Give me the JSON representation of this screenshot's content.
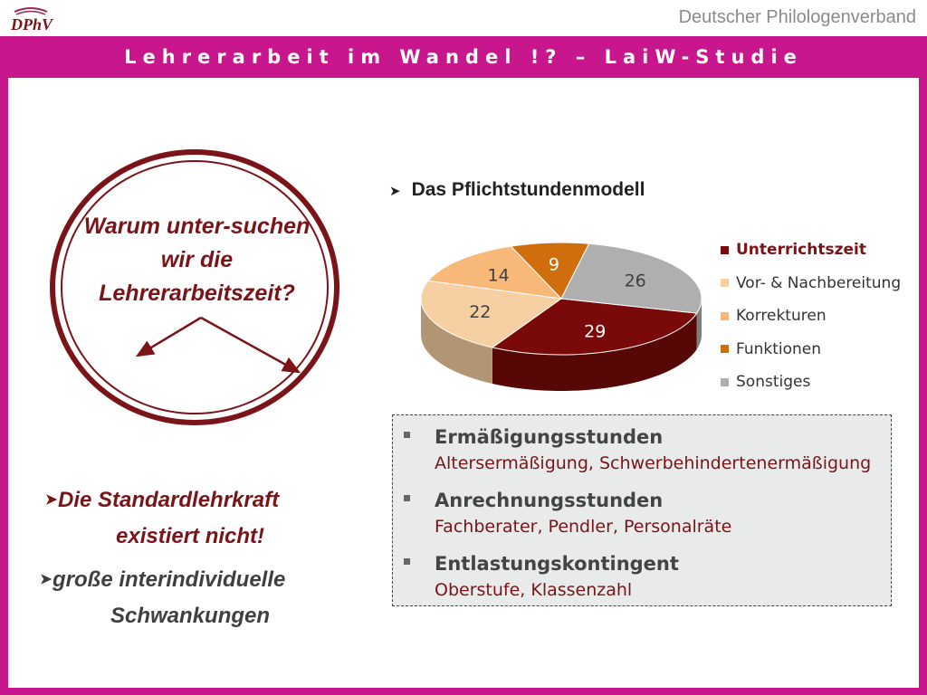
{
  "header": {
    "logo_text": "DPhV",
    "organization": "Deutscher Philologenverband",
    "title": "Lehrerarbeit im Wandel !? – LaiW-Studie"
  },
  "left": {
    "question": "Warum unter-suchen wir die Lehrerarbeitszeit?",
    "bullet1_line1": "Die Standardlehrkraft",
    "bullet1_line2": "existiert nicht!",
    "bullet2_line1": "große interindividuelle",
    "bullet2_line2": "Schwankungen"
  },
  "chart_heading": "Das Pflichtstundenmodell",
  "chart_data": {
    "type": "pie",
    "style": "3d",
    "title": "",
    "categories": [
      "Unterrichtszeit",
      "Vor- & Nachbereitung",
      "Korrekturen",
      "Funktionen",
      "Sonstiges"
    ],
    "values": [
      29,
      22,
      14,
      9,
      26
    ],
    "colors": [
      "#7a0a0a",
      "#f6cfa2",
      "#f8b878",
      "#d06e0e",
      "#afafaf"
    ],
    "legend_position": "right"
  },
  "info": {
    "items": [
      {
        "title": "Ermäßigungsstunden",
        "detail": "Altersermäßigung, Schwerbehindertenermäßigung"
      },
      {
        "title": "Anrechnungsstunden",
        "detail": "Fachberater, Pendler, Personalräte"
      },
      {
        "title": "Entlastungskontingent",
        "detail": "Oberstufe, Klassenzahl"
      }
    ]
  }
}
